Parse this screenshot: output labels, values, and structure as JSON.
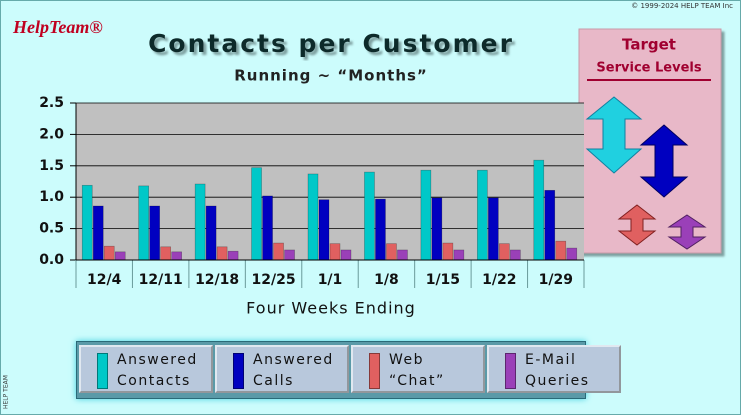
{
  "page": {
    "logo": "HelpTeam®",
    "copyright": "© 1999-2024 HELP TEAM Inc",
    "side_label": "HELP TEAM",
    "target_title": "Target",
    "target_subtitle": "Service Levels"
  },
  "chart_data": {
    "type": "bar",
    "title": "Contacts per Customer",
    "subtitle": "Running ~ “Months”",
    "x_label": "Four Weeks Ending",
    "categories": [
      "12/4",
      "12/11",
      "12/18",
      "12/25",
      "1/1",
      "1/8",
      "1/15",
      "1/22",
      "1/29"
    ],
    "series": [
      {
        "name": "Answered Contacts",
        "color": "#00c8c8",
        "values": [
          1.19,
          1.18,
          1.21,
          1.47,
          1.37,
          1.4,
          1.43,
          1.43,
          1.59
        ]
      },
      {
        "name": "Answered Calls",
        "color": "#0000c0",
        "values": [
          0.86,
          0.86,
          0.86,
          1.02,
          0.96,
          0.97,
          0.99,
          0.99,
          1.11
        ]
      },
      {
        "name": "Web “Chat”",
        "color": "#e06060",
        "values": [
          0.22,
          0.21,
          0.21,
          0.27,
          0.26,
          0.26,
          0.27,
          0.26,
          0.3
        ]
      },
      {
        "name": "E-Mail Queries",
        "color": "#9a40b8",
        "values": [
          0.13,
          0.13,
          0.14,
          0.16,
          0.16,
          0.16,
          0.16,
          0.16,
          0.19
        ]
      }
    ],
    "ylim": [
      0,
      2.5
    ],
    "yticks": [
      {
        "value": 0,
        "label": "0.0"
      },
      0.5,
      {
        "value": 1,
        "label": "1.0"
      },
      1.5,
      {
        "value": 2,
        "label": "2.0"
      },
      2.5
    ],
    "grid": true
  }
}
